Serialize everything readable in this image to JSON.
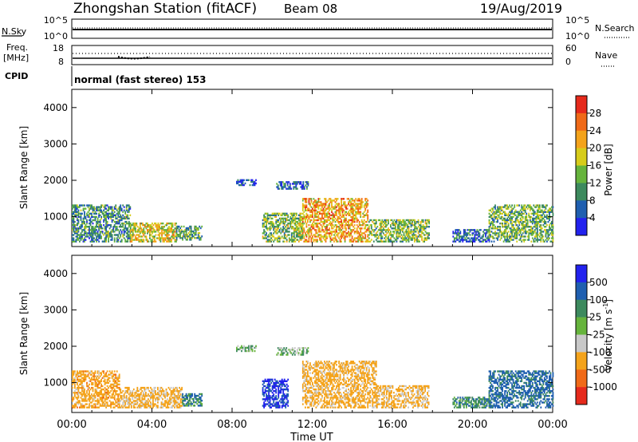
{
  "header": {
    "title": "Zhongshan Station (fitACF)",
    "beam": "Beam 08",
    "date": "19/Aug/2019"
  },
  "strip": {
    "nsky_label": "N.Sky",
    "nsky_ticks": [
      "10^5",
      "10^0"
    ],
    "nsearch_label": "N.Search",
    "nsearch_ticks": [
      "10^5",
      "10^0"
    ],
    "freq_label": "Freq.",
    "freq_unit": "[MHz]",
    "freq_ticks": [
      "18",
      "8"
    ],
    "nave_label": "Nave",
    "nave_ticks": [
      "60",
      "0"
    ],
    "cpid_label": "CPID",
    "cpid_value": "normal (fast stereo) 153"
  },
  "colors": {
    "power_scale": [
      "#2222ee",
      "#1f5fb0",
      "#3d8a5e",
      "#66b43c",
      "#d7cc1a",
      "#f4a31b",
      "#f06a18",
      "#e62a1c"
    ],
    "velocity_scale": [
      "#e62a1c",
      "#f06a18",
      "#f4a31b",
      "#c8c8c8",
      "#66b43c",
      "#3d8a5e",
      "#1f5fb0",
      "#2222ee"
    ]
  },
  "chart_data": [
    {
      "type": "heatmap",
      "panel": "power",
      "ylabel": "Slant Range [km]",
      "ylim": [
        180,
        4500
      ],
      "yticks": [
        "1000",
        "2000",
        "3000",
        "4000"
      ],
      "xlim_hours": [
        0,
        24
      ],
      "colorbar_label": "Power [dB]",
      "colorbar_ticks": [
        "4",
        "8",
        "12",
        "16",
        "20",
        "24",
        "28"
      ],
      "colorbar_range": [
        0,
        32
      ],
      "regions": [
        {
          "t0": 0.0,
          "t1": 2.9,
          "r0": 300,
          "r1": 1300,
          "value": 10
        },
        {
          "t0": 2.9,
          "t1": 5.2,
          "r0": 300,
          "r1": 800,
          "value": 18
        },
        {
          "t0": 5.2,
          "t1": 6.5,
          "r0": 350,
          "r1": 750,
          "value": 12
        },
        {
          "t0": 8.2,
          "t1": 9.2,
          "r0": 1850,
          "r1": 2000,
          "value": 5
        },
        {
          "t0": 9.5,
          "t1": 11.5,
          "r0": 300,
          "r1": 1100,
          "value": 14
        },
        {
          "t0": 10.2,
          "t1": 11.8,
          "r0": 1750,
          "r1": 1950,
          "value": 6
        },
        {
          "t0": 11.5,
          "t1": 14.8,
          "r0": 300,
          "r1": 1500,
          "value": 22
        },
        {
          "t0": 14.8,
          "t1": 17.8,
          "r0": 300,
          "r1": 900,
          "value": 14
        },
        {
          "t0": 19.0,
          "t1": 20.8,
          "r0": 300,
          "r1": 650,
          "value": 6
        },
        {
          "t0": 20.8,
          "t1": 24.0,
          "r0": 300,
          "r1": 1300,
          "value": 13
        }
      ]
    },
    {
      "type": "heatmap",
      "panel": "velocity",
      "ylabel": "Slant Range [km]",
      "ylim": [
        180,
        4500
      ],
      "yticks": [
        "1000",
        "2000",
        "3000",
        "4000"
      ],
      "xlim_hours": [
        0,
        24
      ],
      "xticks": [
        "00:00",
        "04:00",
        "08:00",
        "12:00",
        "16:00",
        "20:00",
        "00:00"
      ],
      "xlabel": "Time UT",
      "colorbar_label": "Velocity [m s^-1]",
      "colorbar_ticks": [
        "-1000",
        "-500",
        "-100",
        "-25",
        "25",
        "100",
        "500",
        "1000"
      ],
      "regions": [
        {
          "t0": 0.0,
          "t1": 2.4,
          "r0": 300,
          "r1": 1300,
          "value": -300
        },
        {
          "t0": 2.4,
          "t1": 5.5,
          "r0": 300,
          "r1": 850,
          "value": -150
        },
        {
          "t0": 5.5,
          "t1": 6.5,
          "r0": 350,
          "r1": 700,
          "value": 80
        },
        {
          "t0": 8.2,
          "t1": 9.2,
          "r0": 1850,
          "r1": 2000,
          "value": 0
        },
        {
          "t0": 9.5,
          "t1": 10.8,
          "r0": 300,
          "r1": 1100,
          "value": 600
        },
        {
          "t0": 10.2,
          "t1": 11.8,
          "r0": 1750,
          "r1": 1950,
          "value": 0
        },
        {
          "t0": 11.5,
          "t1": 15.2,
          "r0": 300,
          "r1": 1600,
          "value": -200
        },
        {
          "t0": 15.2,
          "t1": 17.8,
          "r0": 300,
          "r1": 900,
          "value": -150
        },
        {
          "t0": 19.0,
          "t1": 20.8,
          "r0": 300,
          "r1": 600,
          "value": 60
        },
        {
          "t0": 20.8,
          "t1": 24.0,
          "r0": 300,
          "r1": 1300,
          "value": 150
        }
      ]
    }
  ]
}
